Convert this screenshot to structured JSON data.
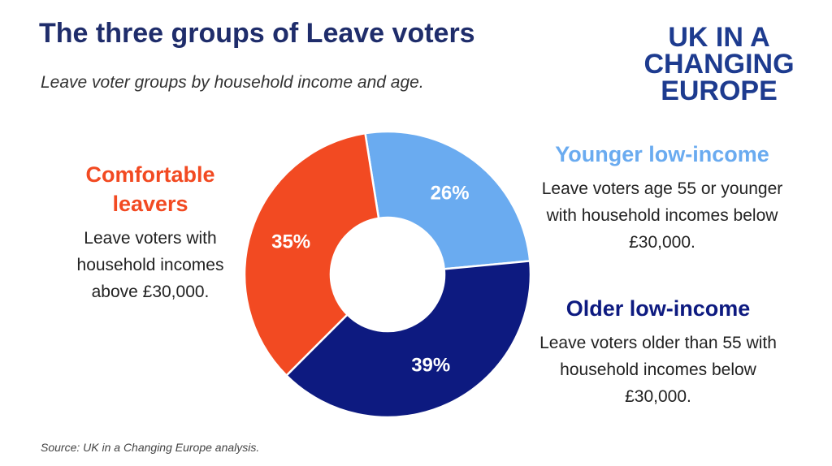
{
  "chart_data": {
    "type": "donut",
    "title": "The three groups of Leave voters",
    "subtitle": "Leave voter groups by household income and age.",
    "source": "Source: UK in a Changing Europe analysis.",
    "logo": [
      "UK IN A",
      "CHANGING",
      "EUROPE"
    ],
    "categories": [
      "Younger low-income",
      "Older low-income",
      "Comfortable leavers"
    ],
    "descriptions": [
      "Leave voters age 55 or younger with household incomes below £30,000.",
      "Leave voters older than 55 with household incomes below £30,000.",
      "Leave voters with household incomes above £30,000."
    ],
    "values": [
      26,
      39,
      35
    ],
    "value_labels": [
      "26%",
      "39%",
      "35%"
    ],
    "colors": [
      "#6aabf0",
      "#0d1a80",
      "#f24a22"
    ]
  }
}
